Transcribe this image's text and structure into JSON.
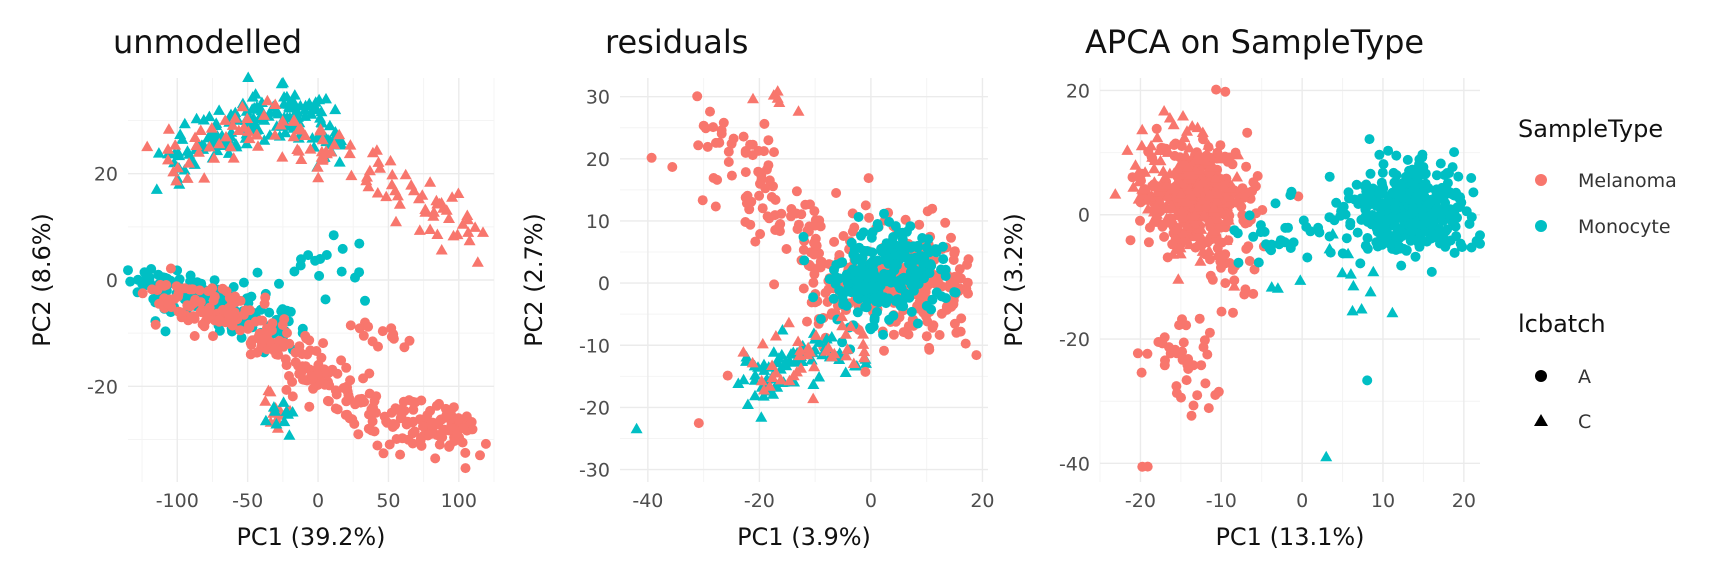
{
  "chart_data": [
    {
      "type": "scatter",
      "title": "unmodelled",
      "xlabel": "PC1 (39.2%)",
      "ylabel": "PC2 (8.6%)",
      "xlim": [
        -135,
        125
      ],
      "ylim": [
        -38,
        38
      ],
      "xticks": [
        -100,
        -50,
        0,
        50,
        100
      ],
      "yticks": [
        -20,
        0,
        20
      ],
      "clusters": [
        {
          "group": "Monocyte",
          "shape": "C",
          "path": [
            [
              -105,
              23
            ],
            [
              -75,
              27
            ],
            [
              -45,
              30
            ],
            [
              -20,
              32
            ],
            [
              0,
              29
            ],
            [
              15,
              24
            ]
          ],
          "spread": [
            8,
            2.5
          ],
          "n": 170
        },
        {
          "group": "Melanoma",
          "shape": "C",
          "path": [
            [
              -110,
              22
            ],
            [
              -70,
              27
            ],
            [
              -30,
              29
            ],
            [
              10,
              24
            ],
            [
              40,
              20
            ],
            [
              70,
              15
            ],
            [
              105,
              10
            ],
            [
              115,
              7
            ]
          ],
          "spread": [
            8,
            2.5
          ],
          "n": 120
        },
        {
          "group": "Monocyte",
          "shape": "A",
          "path": [
            [
              -125,
              -1
            ],
            [
              -95,
              -3
            ],
            [
              -65,
              -5
            ],
            [
              -45,
              -7
            ],
            [
              -25,
              -10
            ]
          ],
          "spread": [
            8,
            2.5
          ],
          "n": 170
        },
        {
          "group": "Melanoma",
          "shape": "A",
          "path": [
            [
              -115,
              -3
            ],
            [
              -80,
              -5
            ],
            [
              -50,
              -8
            ],
            [
              -20,
              -14
            ],
            [
              10,
              -20
            ],
            [
              40,
              -25
            ],
            [
              80,
              -28
            ],
            [
              105,
              -28
            ]
          ],
          "spread": [
            9,
            2.5
          ],
          "n": 320
        },
        {
          "group": "Monocyte",
          "shape": "A",
          "path": [
            [
              -15,
              2
            ],
            [
              10,
              4
            ],
            [
              25,
              4
            ],
            [
              35,
              3
            ]
          ],
          "spread": [
            6,
            3
          ],
          "n": 16
        },
        {
          "group": "Melanoma",
          "shape": "A",
          "path": [
            [
              30,
              -8
            ],
            [
              40,
              -10
            ],
            [
              55,
              -12
            ],
            [
              65,
              -10
            ]
          ],
          "spread": [
            6,
            2
          ],
          "n": 14
        },
        {
          "group": "Melanoma",
          "shape": "C",
          "path": [
            [
              -40,
              -24
            ],
            [
              -30,
              -26
            ],
            [
              -20,
              -25
            ]
          ],
          "spread": [
            5,
            2
          ],
          "n": 14
        },
        {
          "group": "Monocyte",
          "shape": "C",
          "path": [
            [
              -40,
              -24
            ],
            [
              -30,
              -26
            ],
            [
              -20,
              -25
            ]
          ],
          "spread": [
            5,
            2
          ],
          "n": 10
        }
      ]
    },
    {
      "type": "scatter",
      "title": "residuals",
      "xlabel": "PC1 (3.9%)",
      "ylabel": "PC2 (2.7%)",
      "xlim": [
        -45,
        21
      ],
      "ylim": [
        -32,
        33
      ],
      "xticks": [
        -40,
        -20,
        0,
        20
      ],
      "yticks": [
        -30,
        -20,
        -10,
        0,
        10,
        20,
        30
      ],
      "clusters": [
        {
          "group": "Melanoma",
          "shape": "A",
          "path": [
            [
              -28,
              25
            ],
            [
              -24,
              20
            ],
            [
              -20,
              14
            ],
            [
              -15,
              10
            ],
            [
              -10,
              5
            ],
            [
              -8,
              0
            ]
          ],
          "spread": [
            3,
            3
          ],
          "n": 110
        },
        {
          "group": "Melanoma",
          "shape": "A",
          "path": [
            [
              -5,
              -2
            ],
            [
              0,
              0
            ],
            [
              5,
              2
            ],
            [
              10,
              0
            ],
            [
              13,
              -3
            ]
          ],
          "spread": [
            4,
            4.5
          ],
          "n": 260
        },
        {
          "group": "Monocyte",
          "shape": "A",
          "path": [
            [
              -3,
              -2
            ],
            [
              1,
              1
            ],
            [
              5,
              4
            ],
            [
              9,
              2
            ]
          ],
          "spread": [
            3.5,
            3.5
          ],
          "n": 260
        },
        {
          "group": "Monocyte",
          "shape": "C",
          "path": [
            [
              -22,
              -17
            ],
            [
              -16,
              -14
            ],
            [
              -10,
              -12
            ],
            [
              -5,
              -10
            ]
          ],
          "spread": [
            3,
            2.5
          ],
          "n": 70
        },
        {
          "group": "Melanoma",
          "shape": "C",
          "path": [
            [
              -20,
              -15
            ],
            [
              -14,
              -13
            ],
            [
              -8,
              -11
            ],
            [
              -2,
              -8
            ]
          ],
          "spread": [
            3,
            2.5
          ],
          "n": 40
        },
        {
          "group": "Melanoma",
          "shape": "C",
          "path": [
            [
              -22,
              29
            ],
            [
              -18,
              30
            ],
            [
              -14,
              29
            ]
          ],
          "spread": [
            2,
            1
          ],
          "n": 6
        },
        {
          "group": "Monocyte",
          "shape": "C",
          "path": [
            [
              -42,
              -24
            ]
          ],
          "spread": [
            0.3,
            0.3
          ],
          "n": 1
        },
        {
          "group": "Melanoma",
          "shape": "A",
          "path": [
            [
              -42,
              -7
            ],
            [
              -40,
              25
            ],
            [
              -30,
              -28
            ],
            [
              19,
              -5
            ],
            [
              -30,
              -16
            ]
          ],
          "spread": [
            0.2,
            0.2
          ],
          "n": 5
        }
      ]
    },
    {
      "type": "scatter",
      "title": "APCA on SampleType",
      "xlabel": "PC1 (13.1%)",
      "ylabel": "PC2 (3.2%)",
      "xlim": [
        -25,
        22
      ],
      "ylim": [
        -43,
        22
      ],
      "xticks": [
        -20,
        -10,
        0,
        10,
        20
      ],
      "yticks": [
        -40,
        -20,
        0,
        20
      ],
      "clusters": [
        {
          "group": "Melanoma",
          "shape": "A",
          "path": [
            [
              -17,
              2
            ],
            [
              -14,
              5
            ],
            [
              -12,
              3
            ],
            [
              -10,
              0
            ],
            [
              -8,
              -3
            ]
          ],
          "spread": [
            2.3,
            5
          ],
          "n": 300
        },
        {
          "group": "Melanoma",
          "shape": "C",
          "path": [
            [
              -19,
              4
            ],
            [
              -16,
              6
            ],
            [
              -13,
              4
            ],
            [
              -10,
              0
            ]
          ],
          "spread": [
            2,
            5
          ],
          "n": 180
        },
        {
          "group": "Melanoma",
          "shape": "A",
          "path": [
            [
              -18,
              -18
            ],
            [
              -15,
              -23
            ],
            [
              -13,
              -28
            ]
          ],
          "spread": [
            2,
            3
          ],
          "n": 40
        },
        {
          "group": "Monocyte",
          "shape": "A",
          "path": [
            [
              9,
              0
            ],
            [
              12,
              1
            ],
            [
              15,
              1
            ],
            [
              18,
              0
            ]
          ],
          "spread": [
            2.3,
            3.5
          ],
          "n": 380
        },
        {
          "group": "Monocyte",
          "shape": "A",
          "path": [
            [
              -6,
              -5
            ],
            [
              -2,
              -2
            ],
            [
              2,
              -1
            ],
            [
              5,
              0
            ]
          ],
          "spread": [
            2,
            2.5
          ],
          "n": 40
        },
        {
          "group": "Monocyte",
          "shape": "C",
          "path": [
            [
              -5,
              -10
            ],
            [
              -3,
              -12
            ],
            [
              4,
              -8
            ],
            [
              11,
              -18
            ]
          ],
          "spread": [
            1.5,
            2
          ],
          "n": 14
        },
        {
          "group": "Monocyte",
          "shape": "C",
          "path": [
            [
              3,
              -39
            ]
          ],
          "spread": [
            0.2,
            0.2
          ],
          "n": 1
        },
        {
          "group": "Monocyte",
          "shape": "A",
          "path": [
            [
              2,
              15
            ],
            [
              8,
              -28
            ]
          ],
          "spread": [
            0.2,
            0.2
          ],
          "n": 2
        },
        {
          "group": "Melanoma",
          "shape": "A",
          "path": [
            [
              -22,
              -39
            ],
            [
              -18,
              -41
            ]
          ],
          "spread": [
            0.3,
            0.3
          ],
          "n": 2
        }
      ]
    }
  ],
  "legend": {
    "sampletype_title": "SampleType",
    "sampletype": [
      {
        "label": "Melanoma",
        "color": "#F8766D"
      },
      {
        "label": "Monocyte",
        "color": "#00BFC4"
      }
    ],
    "batch_title": "lcbatch",
    "batch": [
      {
        "label": "A",
        "shape": "circle"
      },
      {
        "label": "C",
        "shape": "triangle"
      }
    ]
  },
  "colors": {
    "Melanoma": "#F8766D",
    "Monocyte": "#00BFC4"
  }
}
